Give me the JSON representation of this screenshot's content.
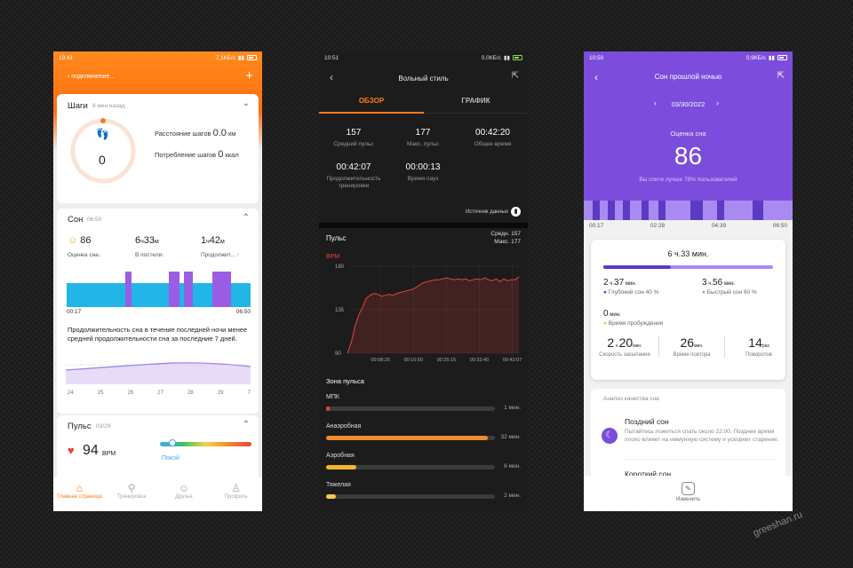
{
  "colors": {
    "orange": "#ff7a1a",
    "purple": "#7c4ddc",
    "sleep_blue": "#21b6e6",
    "sleep_purple": "#9b5de5",
    "hr_red": "#e8423b"
  },
  "phone1": {
    "status": {
      "time": "10:41",
      "speed": "7,1КБ/с"
    },
    "header": {
      "title": "› подключение..."
    },
    "steps": {
      "title": "Шаги",
      "ago": "8 мин назад",
      "count": "0",
      "distance_label": "Расстояние шагов",
      "distance_value": "0.0",
      "distance_unit": "км",
      "calories_label": "Потребление шагов",
      "calories_value": "0",
      "calories_unit": "ккал"
    },
    "sleep": {
      "title": "Сон",
      "time": "06:50",
      "score": "86",
      "score_label": "Оценка сна",
      "bed_h": "6",
      "bed_hu": "ч",
      "bed_m": "33",
      "bed_mu": "м",
      "bed_label": "В постели",
      "long_h": "1",
      "long_hu": "ч",
      "long_m": "42",
      "long_mu": "м",
      "long_label": "Продолжит...",
      "start": "00:17",
      "end": "06:50",
      "note": "Продолжительность сна в течение последней ночи менее средней продолжительности сна за последние 7 дней.",
      "days": [
        "24",
        "25",
        "26",
        "27",
        "28",
        "29",
        "7"
      ]
    },
    "pulse": {
      "title": "Пульс",
      "date": "03/29",
      "value": "94",
      "unit": "BPM",
      "state": "Покой"
    },
    "nav": [
      "Главная страница",
      "Тренировка",
      "Друзья",
      "Профиль"
    ]
  },
  "phone2": {
    "status": {
      "time": "10:51",
      "speed": "0,0КБ/с"
    },
    "title": "Вольный стиль",
    "tabs": [
      "ОБЗОР",
      "ГРАФИК"
    ],
    "stats": [
      {
        "v": "157",
        "l": "Средний пульс"
      },
      {
        "v": "177",
        "l": "Макс. пульс"
      },
      {
        "v": "00:42:20",
        "l": "Общее время"
      },
      {
        "v": "00:42:07",
        "l": "Продолжительность тренировки"
      },
      {
        "v": "00:00:13",
        "l": "Время пауз"
      }
    ],
    "source": "Источник данных",
    "pulse_title": "Пульс",
    "avg_text": "Средн. 157",
    "max_text": "Макс. 177",
    "chart_data": {
      "type": "line",
      "ylabel": "BPM",
      "yticks": [
        "180",
        "135",
        "90"
      ],
      "ylim": [
        90,
        180
      ],
      "xticks": [
        "00:08:25",
        "00:16:50",
        "00:25:15",
        "00:33:40",
        "00:42:07"
      ],
      "series": [
        {
          "values": [
            90,
            101,
            118,
            130,
            138,
            147,
            150,
            152,
            151,
            149,
            150,
            151,
            150,
            152,
            153,
            154,
            155,
            156,
            158,
            161,
            163,
            164,
            165,
            166,
            166,
            167,
            168,
            167,
            166,
            167,
            166,
            167,
            165,
            166,
            167,
            166,
            168,
            166,
            165,
            167,
            164,
            167,
            165,
            166,
            166,
            169
          ]
        }
      ]
    },
    "zones_title": "Зона пульса",
    "zones": [
      {
        "name": "МПК",
        "time": "1 мин.",
        "fill": 0.02,
        "color": "#e8423b"
      },
      {
        "name": "Анаэробная",
        "time": "32 мин.",
        "fill": 0.96,
        "color": "#f28a2e"
      },
      {
        "name": "Аэробная",
        "time": "6 мин.",
        "fill": 0.18,
        "color": "#f5b52a"
      },
      {
        "name": "Тяжелая",
        "time": "2 мин.",
        "fill": 0.06,
        "color": "#f7c84a"
      }
    ]
  },
  "phone3": {
    "status": {
      "time": "10:50",
      "speed": "0,9КБ/с"
    },
    "title": "Сон прошлой ночью",
    "date": "03/30/2022",
    "score_label": "Оценка сна",
    "score": "86",
    "compare": "Вы спите лучше 78% пользователей",
    "timeline": [
      "00:17",
      "02:28",
      "04:39",
      "06:50"
    ],
    "total": {
      "h": "6",
      "m": "33",
      "text": "6 ч.33 мин."
    },
    "deep": {
      "h": "2",
      "m": "37",
      "label": "Глубокий сон 40 %"
    },
    "rem": {
      "h": "3",
      "m": "56",
      "label": "Быстрый сон 60 %"
    },
    "awake": {
      "m": "0",
      "label": "Время пробуждения"
    },
    "metrics": [
      {
        "v": "2",
        "v2": "20",
        "u": "мин.",
        "l": "Скорость засыпания"
      },
      {
        "v": "26",
        "u": "мин.",
        "l": "Время повтора"
      },
      {
        "v": "14",
        "u": "раз",
        "l": "Поворотов"
      }
    ],
    "quality_title": "Анализ качества сна",
    "tip_title": "Поздний сон",
    "tip_text": "Пытайтесь ложиться спать около 22:00. Позднее время плохо влияет на иммунную систему и ускоряет старение.",
    "short_title": "Короткий сон",
    "edit": "Изменить"
  },
  "watermark": "greeshan.ru"
}
